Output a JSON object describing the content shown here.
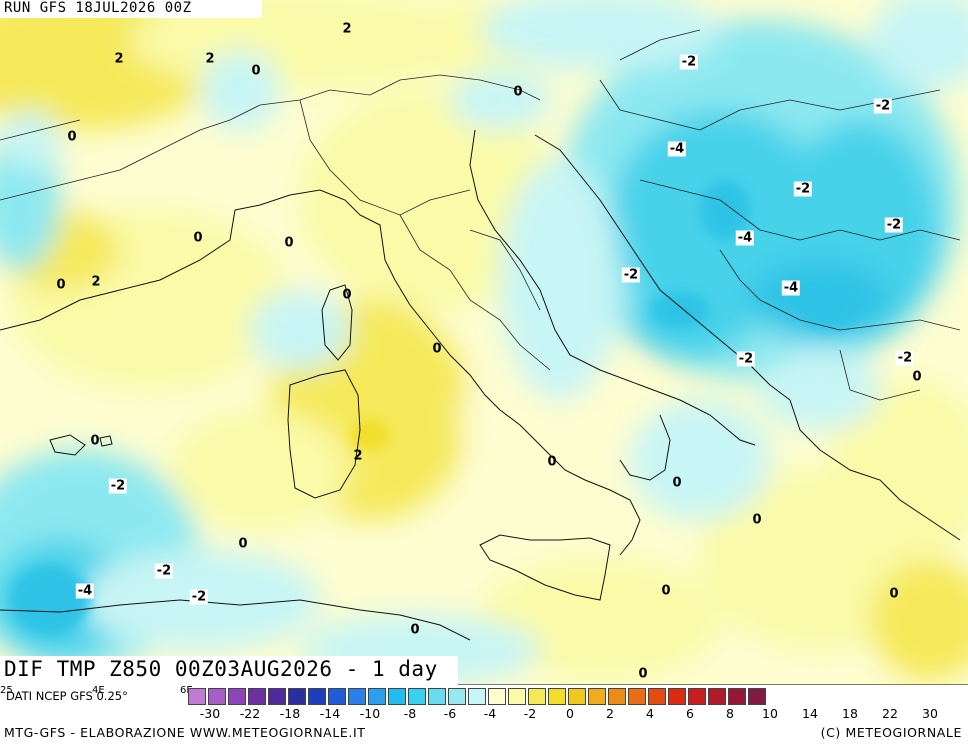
{
  "header": {
    "run_label": "RUN GFS 18JUL2026 00Z"
  },
  "title": {
    "text": "DIF TMP Z850 00Z03AUG2026 - 1 day"
  },
  "source_label": "DATI NCEP GFS 0.25°",
  "footer": {
    "left": "MTG-GFS - ELABORAZIONE WWW.METEOGIORNALE.IT",
    "right": "(C) METEOGIORNALE"
  },
  "colors": {
    "yellow_strong": "#f5e95a",
    "yellow_light": "#fafaa8",
    "cream": "#fdfdd0",
    "cyan_pale": "#c8f5f5",
    "cyan_mid": "#8ce8f0",
    "cyan_strong": "#46d2ea",
    "blue": "#2ec3e6"
  },
  "colorbar": {
    "swatches": [
      "#c07cd4",
      "#a85ec8",
      "#8c44b8",
      "#6e2ea4",
      "#4e2a9a",
      "#2a2ea0",
      "#1e3ec0",
      "#1e5cd8",
      "#2a80e8",
      "#2aa0ee",
      "#22bcf0",
      "#3cd0f0",
      "#6adcef",
      "#98e8f2",
      "#c8f5f5",
      "#fdfdd0",
      "#fafaa8",
      "#f5e95a",
      "#f2de2a",
      "#f0c820",
      "#f0ac1c",
      "#ee8c1a",
      "#ea6c16",
      "#e44c14",
      "#dc2a14",
      "#c81e1e",
      "#b01a2a",
      "#961836",
      "#821a42"
    ],
    "ticks": [
      "-30",
      "-22",
      "-18",
      "-14",
      "-10",
      "-8",
      "-6",
      "-4",
      "-2",
      "0",
      "2",
      "4",
      "6",
      "8",
      "10",
      "14",
      "18",
      "22",
      "30"
    ]
  },
  "isoline_labels": [
    {
      "text": "2"
    },
    {
      "text": "2"
    },
    {
      "text": "0"
    },
    {
      "text": "2"
    },
    {
      "text": "0"
    },
    {
      "text": "0"
    },
    {
      "text": "0"
    },
    {
      "text": "0"
    },
    {
      "text": "0"
    },
    {
      "text": "2"
    },
    {
      "text": "0"
    },
    {
      "text": "0"
    },
    {
      "text": "2"
    },
    {
      "text": "0"
    },
    {
      "text": "0"
    },
    {
      "text": "-2"
    },
    {
      "text": "0"
    },
    {
      "text": "-2"
    },
    {
      "text": "-4"
    },
    {
      "text": "-2"
    },
    {
      "text": "0"
    },
    {
      "text": "0"
    },
    {
      "text": "0"
    },
    {
      "text": "0"
    },
    {
      "text": "0"
    },
    {
      "text": "-2"
    },
    {
      "text": "-2"
    },
    {
      "text": "-4"
    },
    {
      "text": "-2"
    },
    {
      "text": "-2"
    },
    {
      "text": "-4"
    },
    {
      "text": "-2"
    },
    {
      "text": "-4"
    },
    {
      "text": "-2"
    },
    {
      "text": "-2"
    },
    {
      "text": "0"
    },
    {
      "text": "0"
    },
    {
      "text": "0"
    }
  ],
  "map_edge_labels": [
    "25",
    "4E",
    "6E"
  ]
}
